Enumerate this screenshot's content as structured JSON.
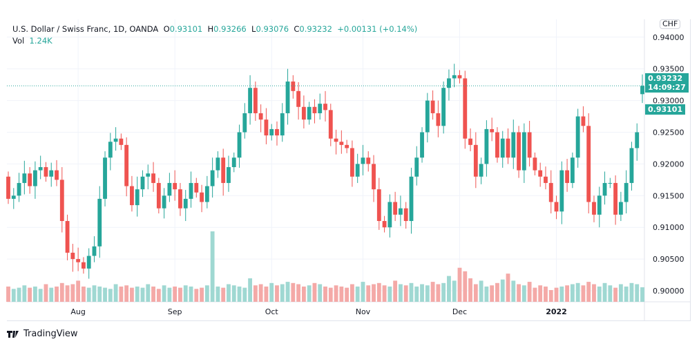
{
  "header": {
    "title": "U.S. Dollar / Swiss Franc, 1D, OANDA",
    "o_label": "O",
    "o": "0.93101",
    "h_label": "H",
    "h": "0.93266",
    "l_label": "L",
    "l": "0.93076",
    "c_label": "C",
    "c": "0.93232",
    "change": "+0.00131 (+0.14%)",
    "vol_label": "Vol",
    "vol": "1.24K"
  },
  "price_tags": {
    "last": "0.93232",
    "countdown": "14:09:27",
    "open": "0.93101",
    "currency": "CHF"
  },
  "footer": {
    "brand": "TradingView"
  },
  "colors": {
    "up": "#26a69a",
    "down": "#ef5350",
    "up_vol": "#9fd8d2",
    "down_vol": "#f4a9a7"
  },
  "chart_data": {
    "type": "candlestick",
    "symbol": "USDCHF",
    "ylim": [
      0.895,
      0.9395
    ],
    "yticks": [
      "0.90000",
      "0.90500",
      "0.91000",
      "0.91500",
      "0.92000",
      "0.92500",
      "0.93000",
      "0.93500",
      "0.94000"
    ],
    "ytick_values": [
      0.9,
      0.905,
      0.91,
      0.915,
      0.92,
      0.925,
      0.93,
      0.935,
      0.94
    ],
    "xticks": [
      {
        "label": "Aug",
        "index": 13
      },
      {
        "label": "Sep",
        "index": 31
      },
      {
        "label": "Oct",
        "index": 49
      },
      {
        "label": "Nov",
        "index": 66
      },
      {
        "label": "Dec",
        "index": 84
      },
      {
        "label": "2022",
        "index": 102
      }
    ],
    "first_open": 0.918,
    "closes": [
      0.9145,
      0.915,
      0.917,
      0.9185,
      0.9165,
      0.919,
      0.9195,
      0.918,
      0.919,
      0.9175,
      0.911,
      0.906,
      0.905,
      0.9045,
      0.9035,
      0.9055,
      0.907,
      0.9145,
      0.921,
      0.9235,
      0.924,
      0.923,
      0.9165,
      0.9135,
      0.916,
      0.918,
      0.9185,
      0.917,
      0.913,
      0.915,
      0.917,
      0.916,
      0.913,
      0.9145,
      0.917,
      0.9155,
      0.914,
      0.9165,
      0.919,
      0.921,
      0.917,
      0.9195,
      0.921,
      0.925,
      0.928,
      0.932,
      0.928,
      0.927,
      0.9245,
      0.9255,
      0.9245,
      0.928,
      0.933,
      0.9315,
      0.929,
      0.927,
      0.929,
      0.928,
      0.9295,
      0.9285,
      0.924,
      0.9235,
      0.923,
      0.9225,
      0.918,
      0.92,
      0.921,
      0.92,
      0.916,
      0.911,
      0.91,
      0.914,
      0.912,
      0.913,
      0.911,
      0.918,
      0.921,
      0.925,
      0.93,
      0.928,
      0.926,
      0.932,
      0.9335,
      0.934,
      0.9335,
      0.924,
      0.923,
      0.918,
      0.92,
      0.9255,
      0.925,
      0.921,
      0.924,
      0.921,
      0.925,
      0.919,
      0.925,
      0.921,
      0.919,
      0.918,
      0.917,
      0.914,
      0.9125,
      0.919,
      0.917,
      0.921,
      0.9275,
      0.926,
      0.914,
      0.912,
      0.915,
      0.917,
      0.917,
      0.912,
      0.914,
      0.917,
      0.9225,
      0.925,
      0.93232
    ],
    "volumes": [
      1.3,
      1.1,
      1.2,
      1.4,
      1.2,
      1.3,
      1.1,
      1.5,
      1.2,
      1.3,
      1.6,
      1.4,
      1.5,
      1.8,
      1.3,
      1.2,
      1.4,
      1.3,
      1.2,
      1.1,
      1.5,
      1.3,
      1.4,
      1.2,
      1.3,
      1.2,
      1.5,
      1.3,
      1.1,
      1.4,
      1.2,
      1.3,
      1.2,
      1.4,
      1.3,
      1.1,
      1.2,
      1.4,
      6.0,
      1.3,
      1.2,
      1.5,
      1.4,
      1.3,
      1.2,
      2.0,
      1.4,
      1.5,
      1.3,
      1.6,
      1.4,
      1.5,
      1.7,
      1.6,
      1.5,
      1.3,
      1.4,
      1.6,
      1.5,
      1.3,
      1.2,
      1.4,
      1.3,
      1.2,
      1.5,
      1.3,
      1.7,
      1.4,
      1.5,
      1.6,
      1.4,
      1.3,
      1.8,
      1.5,
      1.4,
      1.6,
      1.3,
      1.5,
      1.4,
      1.7,
      1.5,
      1.6,
      2.2,
      1.8,
      2.9,
      2.6,
      2.0,
      1.5,
      1.8,
      1.3,
      1.4,
      1.6,
      1.9,
      2.4,
      1.8,
      1.5,
      1.4,
      1.7,
      1.2,
      1.4,
      1.3,
      1.0,
      1.2,
      1.3,
      1.4,
      1.5,
      1.6,
      1.4,
      1.7,
      1.5,
      1.3,
      1.6,
      1.4,
      1.2,
      1.5,
      1.3,
      1.6,
      1.5,
      1.24
    ]
  }
}
